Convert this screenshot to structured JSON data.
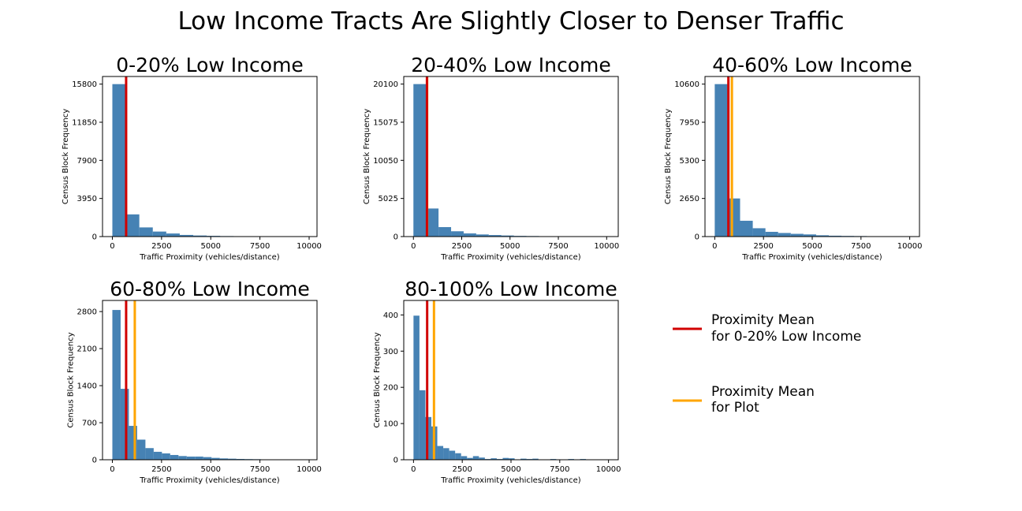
{
  "suptitle": "Low Income Tracts Are Slightly Closer to Denser Traffic",
  "colors": {
    "bar": "#4682b4",
    "ref_line": "#d10000",
    "plot_line": "#ffa500"
  },
  "legend": {
    "placement": "right",
    "items": [
      {
        "line1": "Proximity Mean",
        "line2": "for 0-20% Low Income",
        "color": "#d10000"
      },
      {
        "line1": "Proximity Mean",
        "line2": "for Plot",
        "color": "#ffa500"
      }
    ]
  },
  "chart_data": [
    {
      "type": "bar",
      "title": "0-20% Low Income",
      "xlabel": "Traffic Proximity (vehicles/distance)",
      "ylabel": "Census Block Frequency",
      "xlim": [
        -500,
        10400
      ],
      "ylim": [
        0,
        16590
      ],
      "xticks": [
        0,
        2500,
        5000,
        7500,
        10000
      ],
      "yticks": [
        0,
        3950,
        7900,
        11850,
        15800
      ],
      "bin_width": 685,
      "bin_starts": [
        0,
        685,
        1370,
        2055,
        2740,
        3425,
        4110,
        4795,
        5480,
        6165,
        6850,
        7535,
        8220,
        8905,
        9590
      ],
      "values": [
        15800,
        2300,
        950,
        520,
        320,
        170,
        110,
        75,
        50,
        35,
        25,
        20,
        15,
        10,
        8
      ],
      "ref_mean": 700,
      "plot_mean": null
    },
    {
      "type": "bar",
      "title": "20-40% Low Income",
      "xlabel": "Traffic Proximity (vehicles/distance)",
      "ylabel": "Census Block Frequency",
      "xlim": [
        -500,
        10600
      ],
      "ylim": [
        0,
        21100
      ],
      "xticks": [
        0,
        2500,
        5000,
        7500,
        10000
      ],
      "yticks": [
        0,
        5025,
        10050,
        15075,
        20100
      ],
      "bin_width": 650,
      "bin_starts": [
        0,
        650,
        1300,
        1950,
        2600,
        3250,
        3900,
        4550,
        5200,
        5850,
        6500,
        7150,
        7800,
        8450,
        9100,
        9750
      ],
      "values": [
        20100,
        3700,
        1250,
        700,
        420,
        280,
        200,
        140,
        90,
        70,
        50,
        35,
        25,
        20,
        15,
        10
      ],
      "ref_mean": 700,
      "plot_mean": 710
    },
    {
      "type": "bar",
      "title": "40-60% Low Income",
      "xlabel": "Traffic Proximity (vehicles/distance)",
      "ylabel": "Census Block Frequency",
      "xlim": [
        -500,
        10500
      ],
      "ylim": [
        0,
        11130
      ],
      "xticks": [
        0,
        2500,
        5000,
        7500,
        10000
      ],
      "yticks": [
        0,
        2650,
        5300,
        7950,
        10600
      ],
      "bin_width": 650,
      "bin_starts": [
        0,
        650,
        1300,
        1950,
        2600,
        3250,
        3900,
        4550,
        5200,
        5850,
        6500,
        7150,
        7800,
        8450,
        9100,
        9750
      ],
      "values": [
        10600,
        2650,
        1100,
        580,
        330,
        250,
        190,
        150,
        90,
        60,
        45,
        35,
        25,
        20,
        15,
        10
      ],
      "ref_mean": 700,
      "plot_mean": 880
    },
    {
      "type": "bar",
      "title": "60-80% Low Income",
      "xlabel": "Traffic Proximity (vehicles/distance)",
      "ylabel": "Census Block Frequency",
      "xlim": [
        -500,
        10400
      ],
      "ylim": [
        0,
        3010
      ],
      "xticks": [
        0,
        2500,
        5000,
        7500,
        10000
      ],
      "yticks": [
        0,
        700,
        1400,
        2100,
        2800
      ],
      "bin_width": 420,
      "bin_starts": [
        0,
        420,
        840,
        1260,
        1680,
        2100,
        2520,
        2940,
        3360,
        3780,
        4200,
        4620,
        5040,
        5460,
        5880,
        6300,
        6720,
        7140,
        7560,
        7980,
        8400,
        8820,
        9240,
        9660
      ],
      "values": [
        2830,
        1340,
        640,
        380,
        220,
        150,
        120,
        90,
        70,
        60,
        60,
        50,
        35,
        25,
        20,
        15,
        12,
        10,
        5,
        4,
        3,
        3,
        2,
        2
      ],
      "ref_mean": 700,
      "plot_mean": 1140
    },
    {
      "type": "bar",
      "title": "80-100% Low Income",
      "xlabel": "Traffic Proximity (vehicles/distance)",
      "ylabel": "Census Block Frequency",
      "xlim": [
        -500,
        10500
      ],
      "ylim": [
        0,
        440
      ],
      "xticks": [
        0,
        2500,
        5000,
        7500,
        10000
      ],
      "yticks": [
        0,
        100,
        200,
        300,
        400
      ],
      "bin_width": 305,
      "bin_starts": [
        0,
        305,
        610,
        915,
        1220,
        1525,
        1830,
        2135,
        2440,
        2745,
        3050,
        3355,
        3660,
        3965,
        4270,
        4575,
        4880,
        5185,
        5490,
        5795,
        6100,
        6405,
        6710,
        7015,
        7320,
        7625,
        7930,
        8235,
        8540,
        8845,
        9150,
        9455
      ],
      "values": [
        398,
        192,
        118,
        92,
        38,
        32,
        25,
        18,
        10,
        5,
        10,
        6,
        2,
        4,
        2,
        5,
        4,
        0,
        3,
        2,
        3,
        0,
        0,
        2,
        0,
        0,
        2,
        0,
        2,
        0,
        0,
        0
      ],
      "ref_mean": 700,
      "plot_mean": 1050
    }
  ]
}
